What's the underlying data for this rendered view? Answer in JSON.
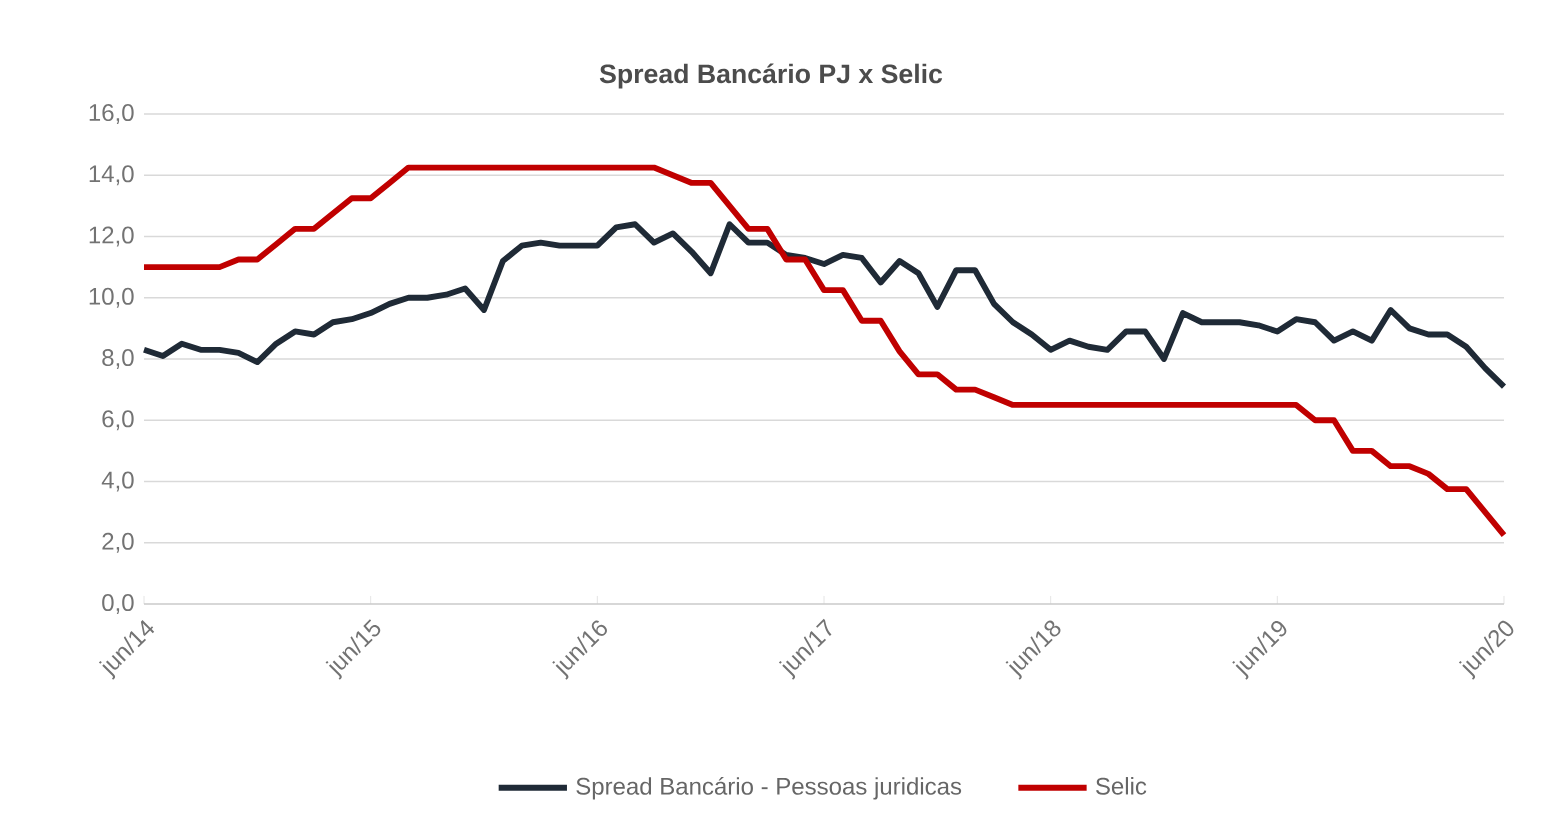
{
  "chart_data": {
    "type": "line",
    "title": "Spread Bancário PJ x Selic",
    "categories": [
      "jun/14",
      null,
      null,
      null,
      null,
      null,
      null,
      null,
      null,
      null,
      null,
      null,
      "jun/15",
      null,
      null,
      null,
      null,
      null,
      null,
      null,
      null,
      null,
      null,
      null,
      "jun/16",
      null,
      null,
      null,
      null,
      null,
      null,
      null,
      null,
      null,
      null,
      null,
      "jun/17",
      null,
      null,
      null,
      null,
      null,
      null,
      null,
      null,
      null,
      null,
      null,
      "jun/18",
      null,
      null,
      null,
      null,
      null,
      null,
      null,
      null,
      null,
      null,
      null,
      "jun/19",
      null,
      null,
      null,
      null,
      null,
      null,
      null,
      null,
      null,
      null,
      null,
      "jun/20"
    ],
    "series": [
      {
        "name": "Spread Bancário - Pessoas juridicas",
        "color": "#1f2a36",
        "values": [
          8.3,
          8.1,
          8.5,
          8.3,
          8.3,
          8.2,
          7.9,
          8.5,
          8.9,
          8.8,
          9.2,
          9.3,
          9.5,
          9.8,
          10.0,
          10.0,
          10.1,
          10.3,
          9.6,
          11.2,
          11.7,
          11.8,
          11.7,
          11.7,
          11.7,
          12.3,
          12.4,
          11.8,
          12.1,
          11.5,
          10.8,
          12.4,
          11.8,
          11.8,
          11.4,
          11.3,
          11.1,
          11.4,
          11.3,
          10.5,
          11.2,
          10.8,
          9.7,
          10.9,
          10.9,
          9.8,
          9.2,
          8.8,
          8.3,
          8.6,
          8.4,
          8.3,
          8.9,
          8.9,
          8.0,
          9.5,
          9.2,
          9.2,
          9.2,
          9.1,
          8.9,
          9.3,
          9.2,
          8.6,
          8.9,
          8.6,
          9.6,
          9.0,
          8.8,
          8.8,
          8.4,
          7.7,
          7.1
        ]
      },
      {
        "name": "Selic",
        "color": "#c00000",
        "values": [
          11.0,
          11.0,
          11.0,
          11.0,
          11.0,
          11.25,
          11.25,
          11.75,
          12.25,
          12.25,
          12.75,
          13.25,
          13.25,
          13.75,
          14.25,
          14.25,
          14.25,
          14.25,
          14.25,
          14.25,
          14.25,
          14.25,
          14.25,
          14.25,
          14.25,
          14.25,
          14.25,
          14.25,
          14.0,
          13.75,
          13.75,
          13.0,
          12.25,
          12.25,
          11.25,
          11.25,
          10.25,
          10.25,
          9.25,
          9.25,
          8.25,
          7.5,
          7.5,
          7.0,
          7.0,
          6.75,
          6.5,
          6.5,
          6.5,
          6.5,
          6.5,
          6.5,
          6.5,
          6.5,
          6.5,
          6.5,
          6.5,
          6.5,
          6.5,
          6.5,
          6.5,
          6.5,
          6.0,
          6.0,
          5.0,
          5.0,
          4.5,
          4.5,
          4.25,
          3.75,
          3.75,
          3.0,
          2.25
        ]
      }
    ],
    "ylim": [
      0,
      16
    ],
    "yticks": [
      {
        "value": 0,
        "label": "0,0"
      },
      {
        "value": 2,
        "label": "2,0"
      },
      {
        "value": 4,
        "label": "4,0"
      },
      {
        "value": 6,
        "label": "6,0"
      },
      {
        "value": 8,
        "label": "8,0"
      },
      {
        "value": 10,
        "label": "10,0"
      },
      {
        "value": 12,
        "label": "12,0"
      },
      {
        "value": 14,
        "label": "14,0"
      },
      {
        "value": 16,
        "label": "16,0"
      }
    ],
    "grid": "y",
    "legend": "bottom"
  }
}
